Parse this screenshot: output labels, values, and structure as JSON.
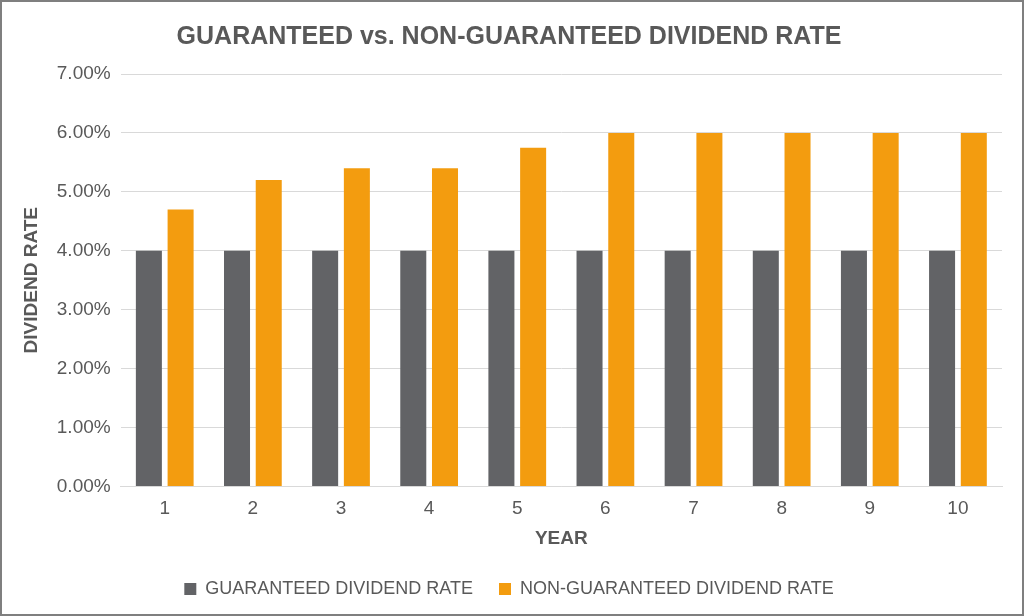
{
  "chart_data": {
    "type": "bar",
    "title": "GUARANTEED vs. NON-GUARANTEED DIVIDEND RATE",
    "x_label": "YEAR",
    "y_label": "DIVIDEND RATE",
    "categories": [
      "1",
      "2",
      "3",
      "4",
      "5",
      "6",
      "7",
      "8",
      "9",
      "10"
    ],
    "series": [
      {
        "name": "GUARANTEED DIVIDEND RATE",
        "color": "#626366",
        "values": [
          4,
          4,
          4,
          4,
          4,
          4,
          4,
          4,
          4,
          4
        ]
      },
      {
        "name": "NON-GUARANTEED DIVIDEND RATE",
        "color": "#f39c0f",
        "values": [
          4.7,
          5.2,
          5.4,
          5.4,
          5.75,
          6,
          6,
          6,
          6,
          6
        ]
      }
    ],
    "ylim": [
      0,
      7
    ],
    "yticks": [
      {
        "value": 0,
        "label": "0.00%"
      },
      {
        "value": 1,
        "label": "1.00%"
      },
      {
        "value": 2,
        "label": "2.00%"
      },
      {
        "value": 3,
        "label": "3.00%"
      },
      {
        "value": 4,
        "label": "4.00%"
      },
      {
        "value": 5,
        "label": "5.00%"
      },
      {
        "value": 6,
        "label": "6.00%"
      },
      {
        "value": 7,
        "label": "7.00%"
      }
    ],
    "grid": true,
    "legend": "bottom"
  }
}
